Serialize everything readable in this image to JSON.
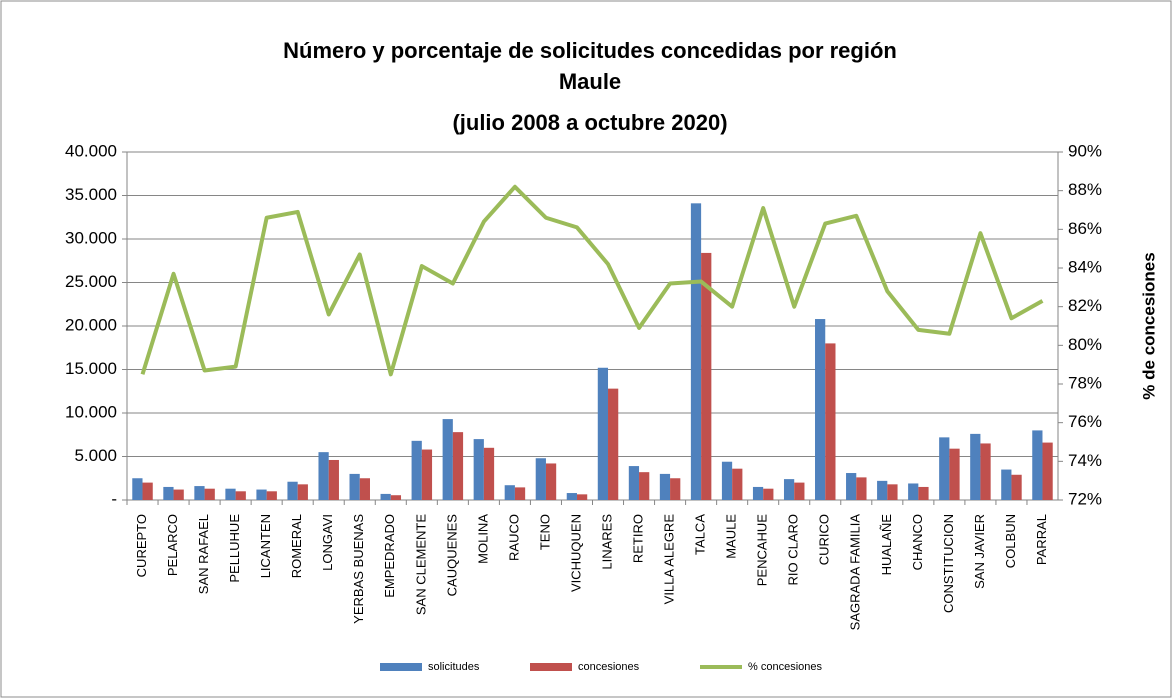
{
  "chart_data": {
    "type": "bar_line",
    "title": [
      "Número y porcentaje de solicitudes concedidas por región",
      "Maule",
      "(julio 2008 a octubre 2020)"
    ],
    "y2_label": "% de concesiones",
    "categories": [
      "CUREPTO",
      "PELARCO",
      "SAN RAFAEL",
      "PELLUHUE",
      "LICANTEN",
      "ROMERAL",
      "LONGAVI",
      "YERBAS BUENAS",
      "EMPEDRADO",
      "SAN CLEMENTE",
      "CAUQUENES",
      "MOLINA",
      "RAUCO",
      "TENO",
      "VICHUQUEN",
      "LINARES",
      "RETIRO",
      "VILLA ALEGRE",
      "TALCA",
      "MAULE",
      "PENCAHUE",
      "RIO CLARO",
      "CURICO",
      "SAGRADA FAMILIA",
      "HUALAÑE",
      "CHANCO",
      "CONSTITUCION",
      "SAN JAVIER",
      "COLBUN",
      "PARRAL"
    ],
    "series": [
      {
        "name": "solicitudes",
        "color": "#4f81bd",
        "kind": "bar",
        "values": [
          2500,
          1500,
          1600,
          1300,
          1200,
          2100,
          5500,
          3000,
          700,
          6800,
          9300,
          7000,
          1700,
          4800,
          800,
          15200,
          3900,
          3000,
          34100,
          4400,
          1500,
          2400,
          20800,
          3100,
          2200,
          1900,
          7200,
          7600,
          3500,
          8000
        ]
      },
      {
        "name": "concesiones",
        "color": "#c0504d",
        "kind": "bar",
        "values": [
          2000,
          1200,
          1300,
          1000,
          1000,
          1800,
          4600,
          2500,
          550,
          5800,
          7800,
          6000,
          1450,
          4200,
          650,
          12800,
          3200,
          2500,
          28400,
          3600,
          1300,
          2000,
          18000,
          2600,
          1800,
          1500,
          5900,
          6500,
          2900,
          6600
        ]
      },
      {
        "name": "% concesiones",
        "color": "#9bbb59",
        "kind": "line",
        "axis": "y2",
        "values": [
          78.5,
          83.7,
          78.7,
          78.9,
          86.6,
          86.9,
          81.6,
          84.7,
          78.5,
          84.1,
          83.2,
          86.4,
          88.2,
          86.6,
          86.1,
          84.2,
          80.9,
          83.2,
          83.3,
          82.0,
          87.1,
          82.0,
          86.3,
          86.7,
          82.8,
          80.8,
          80.6,
          85.8,
          81.4,
          82.3
        ]
      }
    ],
    "ylim": [
      0,
      40000
    ],
    "yticks": [
      {
        "value": 0,
        "label": "-"
      },
      {
        "value": 5000,
        "label": "5.000"
      },
      {
        "value": 10000,
        "label": "10.000"
      },
      {
        "value": 15000,
        "label": "15.000"
      },
      {
        "value": 20000,
        "label": "20.000"
      },
      {
        "value": 25000,
        "label": "25.000"
      },
      {
        "value": 30000,
        "label": "30.000"
      },
      {
        "value": 35000,
        "label": "35.000"
      },
      {
        "value": 40000,
        "label": "40.000"
      }
    ],
    "y2lim": [
      72,
      90
    ],
    "y2ticks": [
      {
        "value": 72,
        "label": "72%"
      },
      {
        "value": 74,
        "label": "74%"
      },
      {
        "value": 76,
        "label": "76%"
      },
      {
        "value": 78,
        "label": "78%"
      },
      {
        "value": 80,
        "label": "80%"
      },
      {
        "value": 82,
        "label": "82%"
      },
      {
        "value": 84,
        "label": "84%"
      },
      {
        "value": 86,
        "label": "86%"
      },
      {
        "value": 88,
        "label": "88%"
      },
      {
        "value": 90,
        "label": "90%"
      }
    ],
    "grid": true,
    "legend": "bottom"
  }
}
